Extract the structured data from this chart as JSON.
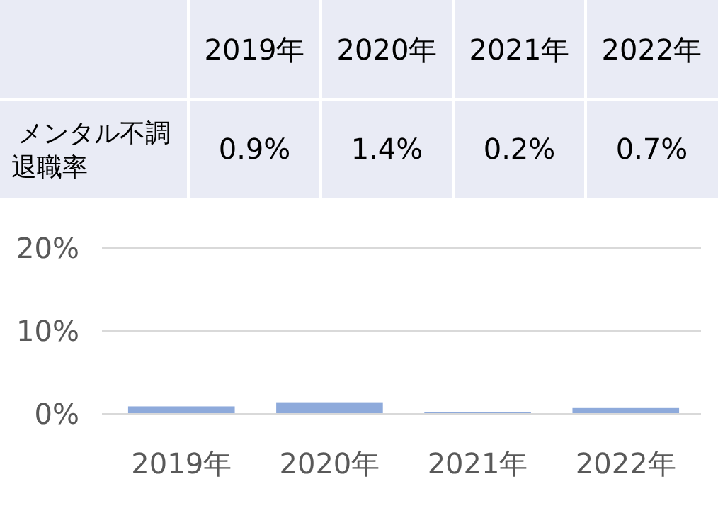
{
  "chart_data": {
    "type": "bar",
    "categories": [
      "2019年",
      "2020年",
      "2021年",
      "2022年"
    ],
    "series": [
      {
        "name": "メンタル不調退職率",
        "color": "#8eaadb",
        "values": [
          0.9,
          1.4,
          0.2,
          0.7
        ],
        "value_labels": [
          "0.9%",
          "1.4%",
          "0.2%",
          "0.7%"
        ]
      }
    ],
    "ylim": [
      0,
      20
    ],
    "yticks": [
      {
        "value": 0,
        "label": "0%"
      },
      {
        "value": 10,
        "label": "10%"
      },
      {
        "value": 20,
        "label": "20%"
      }
    ],
    "grid": "y"
  }
}
